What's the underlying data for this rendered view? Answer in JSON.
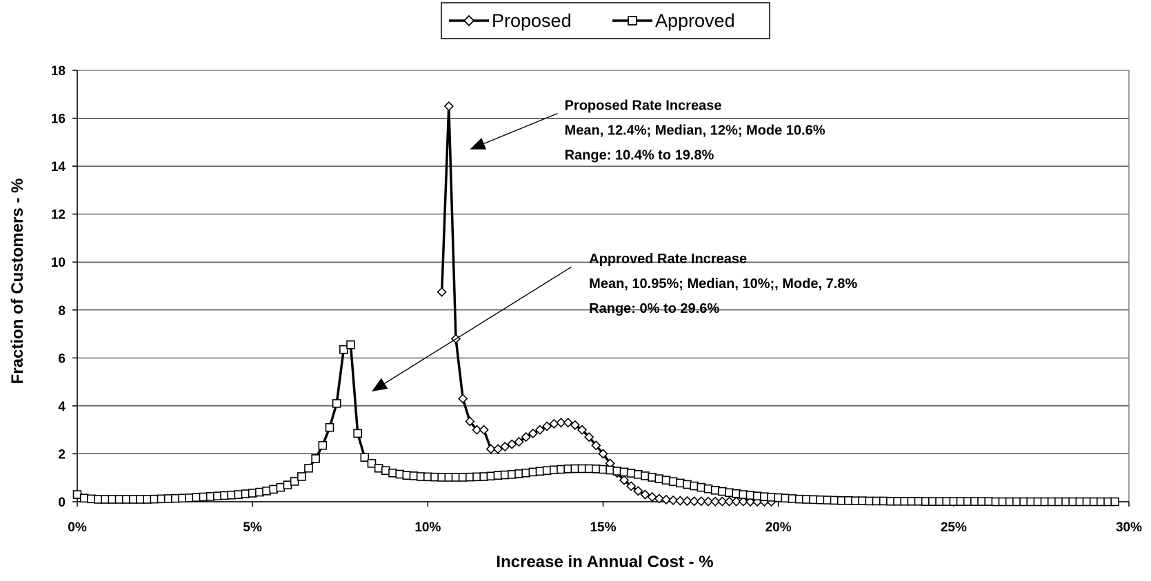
{
  "chart_data": {
    "type": "line",
    "xlabel": "Increase in Annual Cost - %",
    "ylabel": "Fraction of Customers - %",
    "xlim": [
      0,
      30
    ],
    "ylim": [
      0,
      18
    ],
    "x_ticks": [
      0,
      5,
      10,
      15,
      20,
      25,
      30
    ],
    "x_tick_labels": [
      "0%",
      "5%",
      "10%",
      "15%",
      "20%",
      "25%",
      "30%"
    ],
    "y_ticks": [
      0,
      2,
      4,
      6,
      8,
      10,
      12,
      14,
      16,
      18
    ],
    "y_tick_labels": [
      "0",
      "2",
      "4",
      "6",
      "8",
      "10",
      "12",
      "14",
      "16",
      "18"
    ],
    "grid": "horizontal",
    "legend": {
      "position": "top-center"
    },
    "series": [
      {
        "name": "Proposed",
        "marker": "diamond",
        "color": "#000000",
        "points": [
          [
            10.4,
            8.75
          ],
          [
            10.6,
            16.5
          ],
          [
            10.8,
            6.8
          ],
          [
            11.0,
            4.3
          ],
          [
            11.2,
            3.35
          ],
          [
            11.4,
            3.0
          ],
          [
            11.6,
            3.0
          ],
          [
            11.8,
            2.2
          ],
          [
            12.0,
            2.2
          ],
          [
            12.2,
            2.3
          ],
          [
            12.4,
            2.4
          ],
          [
            12.6,
            2.5
          ],
          [
            12.8,
            2.7
          ],
          [
            13.0,
            2.85
          ],
          [
            13.2,
            3.0
          ],
          [
            13.4,
            3.15
          ],
          [
            13.6,
            3.25
          ],
          [
            13.8,
            3.3
          ],
          [
            14.0,
            3.3
          ],
          [
            14.2,
            3.2
          ],
          [
            14.4,
            3.0
          ],
          [
            14.6,
            2.7
          ],
          [
            14.8,
            2.35
          ],
          [
            15.0,
            2.0
          ],
          [
            15.2,
            1.6
          ],
          [
            15.4,
            1.2
          ],
          [
            15.6,
            0.9
          ],
          [
            15.8,
            0.65
          ],
          [
            16.0,
            0.45
          ],
          [
            16.2,
            0.3
          ],
          [
            16.4,
            0.2
          ],
          [
            16.6,
            0.13
          ],
          [
            16.8,
            0.09
          ],
          [
            17.0,
            0.06
          ],
          [
            17.2,
            0.04
          ],
          [
            17.4,
            0.03
          ],
          [
            17.6,
            0.02
          ],
          [
            17.8,
            0.02
          ],
          [
            18.0,
            0.01
          ],
          [
            18.2,
            0.01
          ],
          [
            18.4,
            0.01
          ],
          [
            18.6,
            0.01
          ],
          [
            18.8,
            0.01
          ],
          [
            19.0,
            0.01
          ],
          [
            19.2,
            0.0
          ],
          [
            19.4,
            0.0
          ],
          [
            19.6,
            0.0
          ],
          [
            19.8,
            0.0
          ]
        ]
      },
      {
        "name": "Approved",
        "marker": "square",
        "color": "#000000",
        "points": [
          [
            0.0,
            0.3
          ],
          [
            0.2,
            0.15
          ],
          [
            0.4,
            0.12
          ],
          [
            0.6,
            0.1
          ],
          [
            0.8,
            0.1
          ],
          [
            1.0,
            0.1
          ],
          [
            1.2,
            0.1
          ],
          [
            1.4,
            0.1
          ],
          [
            1.6,
            0.1
          ],
          [
            1.8,
            0.1
          ],
          [
            2.0,
            0.1
          ],
          [
            2.2,
            0.11
          ],
          [
            2.4,
            0.12
          ],
          [
            2.6,
            0.13
          ],
          [
            2.8,
            0.14
          ],
          [
            3.0,
            0.15
          ],
          [
            3.2,
            0.16
          ],
          [
            3.4,
            0.18
          ],
          [
            3.6,
            0.2
          ],
          [
            3.8,
            0.22
          ],
          [
            4.0,
            0.24
          ],
          [
            4.2,
            0.26
          ],
          [
            4.4,
            0.28
          ],
          [
            4.6,
            0.3
          ],
          [
            4.8,
            0.33
          ],
          [
            5.0,
            0.36
          ],
          [
            5.2,
            0.4
          ],
          [
            5.4,
            0.45
          ],
          [
            5.6,
            0.52
          ],
          [
            5.8,
            0.6
          ],
          [
            6.0,
            0.7
          ],
          [
            6.2,
            0.85
          ],
          [
            6.4,
            1.05
          ],
          [
            6.6,
            1.4
          ],
          [
            6.8,
            1.8
          ],
          [
            7.0,
            2.35
          ],
          [
            7.2,
            3.1
          ],
          [
            7.4,
            4.1
          ],
          [
            7.6,
            6.35
          ],
          [
            7.8,
            6.55
          ],
          [
            8.0,
            2.85
          ],
          [
            8.2,
            1.85
          ],
          [
            8.4,
            1.6
          ],
          [
            8.6,
            1.4
          ],
          [
            8.8,
            1.3
          ],
          [
            9.0,
            1.2
          ],
          [
            9.2,
            1.15
          ],
          [
            9.4,
            1.1
          ],
          [
            9.6,
            1.08
          ],
          [
            9.8,
            1.05
          ],
          [
            10.0,
            1.04
          ],
          [
            10.2,
            1.03
          ],
          [
            10.4,
            1.02
          ],
          [
            10.6,
            1.02
          ],
          [
            10.8,
            1.02
          ],
          [
            11.0,
            1.02
          ],
          [
            11.2,
            1.03
          ],
          [
            11.4,
            1.04
          ],
          [
            11.6,
            1.05
          ],
          [
            11.8,
            1.07
          ],
          [
            12.0,
            1.1
          ],
          [
            12.2,
            1.12
          ],
          [
            12.4,
            1.14
          ],
          [
            12.6,
            1.17
          ],
          [
            12.8,
            1.2
          ],
          [
            13.0,
            1.24
          ],
          [
            13.2,
            1.27
          ],
          [
            13.4,
            1.3
          ],
          [
            13.6,
            1.33
          ],
          [
            13.8,
            1.35
          ],
          [
            14.0,
            1.37
          ],
          [
            14.2,
            1.38
          ],
          [
            14.4,
            1.38
          ],
          [
            14.6,
            1.38
          ],
          [
            14.8,
            1.37
          ],
          [
            15.0,
            1.35
          ],
          [
            15.2,
            1.32
          ],
          [
            15.4,
            1.28
          ],
          [
            15.6,
            1.24
          ],
          [
            15.8,
            1.19
          ],
          [
            16.0,
            1.14
          ],
          [
            16.2,
            1.08
          ],
          [
            16.4,
            1.02
          ],
          [
            16.6,
            0.96
          ],
          [
            16.8,
            0.9
          ],
          [
            17.0,
            0.84
          ],
          [
            17.2,
            0.78
          ],
          [
            17.4,
            0.72
          ],
          [
            17.6,
            0.66
          ],
          [
            17.8,
            0.6
          ],
          [
            18.0,
            0.54
          ],
          [
            18.2,
            0.48
          ],
          [
            18.4,
            0.43
          ],
          [
            18.6,
            0.38
          ],
          [
            18.8,
            0.34
          ],
          [
            19.0,
            0.3
          ],
          [
            19.2,
            0.27
          ],
          [
            19.4,
            0.24
          ],
          [
            19.6,
            0.21
          ],
          [
            19.8,
            0.19
          ],
          [
            20.0,
            0.17
          ],
          [
            20.2,
            0.15
          ],
          [
            20.4,
            0.13
          ],
          [
            20.6,
            0.11
          ],
          [
            20.8,
            0.1
          ],
          [
            21.0,
            0.09
          ],
          [
            21.2,
            0.08
          ],
          [
            21.4,
            0.07
          ],
          [
            21.6,
            0.06
          ],
          [
            21.8,
            0.05
          ],
          [
            22.0,
            0.05
          ],
          [
            22.2,
            0.04
          ],
          [
            22.4,
            0.04
          ],
          [
            22.6,
            0.03
          ],
          [
            22.8,
            0.03
          ],
          [
            23.0,
            0.03
          ],
          [
            23.2,
            0.02
          ],
          [
            23.4,
            0.02
          ],
          [
            23.6,
            0.02
          ],
          [
            23.8,
            0.02
          ],
          [
            24.0,
            0.02
          ],
          [
            24.2,
            0.01
          ],
          [
            24.4,
            0.01
          ],
          [
            24.6,
            0.01
          ],
          [
            24.8,
            0.01
          ],
          [
            25.0,
            0.01
          ],
          [
            25.2,
            0.01
          ],
          [
            25.4,
            0.01
          ],
          [
            25.6,
            0.01
          ],
          [
            25.8,
            0.01
          ],
          [
            26.0,
            0.01
          ],
          [
            26.2,
            0.0
          ],
          [
            26.4,
            0.0
          ],
          [
            26.6,
            0.0
          ],
          [
            26.8,
            0.0
          ],
          [
            27.0,
            0.0
          ],
          [
            27.2,
            0.0
          ],
          [
            27.4,
            0.0
          ],
          [
            27.6,
            0.0
          ],
          [
            27.8,
            0.0
          ],
          [
            28.0,
            0.0
          ],
          [
            28.2,
            0.0
          ],
          [
            28.4,
            0.0
          ],
          [
            28.6,
            0.0
          ],
          [
            28.8,
            0.0
          ],
          [
            29.0,
            0.0
          ],
          [
            29.2,
            0.0
          ],
          [
            29.4,
            0.0
          ],
          [
            29.6,
            0.0
          ]
        ]
      }
    ],
    "annotations": [
      {
        "lines": [
          "Proposed Rate Increase",
          "Mean, 12.4%; Median, 12%; Mode 10.6%",
          "Range: 10.4% to 19.8%"
        ],
        "text_anchor": [
          13.9,
          16.35
        ],
        "arrow_from": [
          13.7,
          16.2
        ],
        "arrow_to": [
          11.2,
          14.7
        ]
      },
      {
        "lines": [
          "Approved Rate Increase",
          "Mean, 10.95%; Median, 10%;, Mode, 7.8%",
          "Range: 0% to 29.6%"
        ],
        "text_anchor": [
          14.6,
          9.95
        ],
        "arrow_from": [
          14.1,
          9.8
        ],
        "arrow_to": [
          8.4,
          4.6
        ]
      }
    ]
  }
}
